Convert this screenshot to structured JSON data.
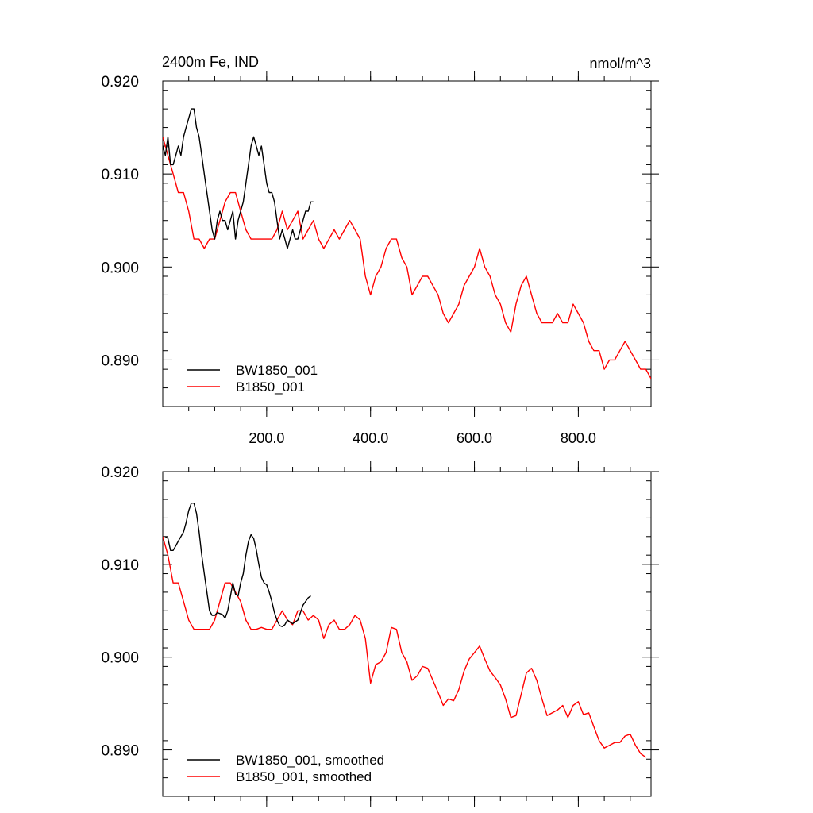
{
  "figure": {
    "title_left": "2400m Fe, IND",
    "title_right": "nmol/m^3"
  },
  "chart_data": [
    {
      "type": "line",
      "xlim": [
        0,
        940
      ],
      "ylim": [
        0.885,
        0.92
      ],
      "yticks": [
        0.92,
        0.91,
        0.9,
        0.89
      ],
      "ytick_labels": [
        "0.920",
        "0.910",
        "0.900",
        "0.890"
      ],
      "xticks": [
        200,
        400,
        600,
        800
      ],
      "xtick_labels": [
        "200.0",
        "400.0",
        "600.0",
        "800.0"
      ],
      "legend_placement": "bottom-left",
      "series": [
        {
          "name": "BW1850_001",
          "color": "#000000",
          "x": [
            0,
            5,
            10,
            15,
            20,
            25,
            30,
            35,
            40,
            45,
            50,
            55,
            60,
            65,
            70,
            75,
            80,
            85,
            90,
            95,
            100,
            105,
            110,
            115,
            120,
            125,
            130,
            135,
            140,
            145,
            150,
            155,
            160,
            165,
            170,
            175,
            180,
            185,
            190,
            195,
            200,
            205,
            210,
            215,
            220,
            225,
            230,
            235,
            240,
            245,
            250,
            255,
            260,
            265,
            270,
            275,
            280,
            285,
            290
          ],
          "y": [
            0.913,
            0.912,
            0.914,
            0.911,
            0.911,
            0.912,
            0.913,
            0.912,
            0.914,
            0.915,
            0.916,
            0.917,
            0.917,
            0.915,
            0.914,
            0.912,
            0.91,
            0.908,
            0.906,
            0.904,
            0.903,
            0.905,
            0.906,
            0.905,
            0.905,
            0.904,
            0.905,
            0.906,
            0.903,
            0.905,
            0.906,
            0.907,
            0.909,
            0.911,
            0.913,
            0.914,
            0.913,
            0.912,
            0.913,
            0.911,
            0.909,
            0.908,
            0.908,
            0.907,
            0.905,
            0.903,
            0.904,
            0.903,
            0.902,
            0.903,
            0.904,
            0.903,
            0.903,
            0.904,
            0.905,
            0.906,
            0.906,
            0.907,
            0.907
          ]
        },
        {
          "name": "B1850_001",
          "color": "#ff0000",
          "x": [
            0,
            10,
            20,
            30,
            40,
            50,
            60,
            70,
            80,
            90,
            100,
            110,
            120,
            130,
            140,
            150,
            160,
            170,
            180,
            190,
            200,
            210,
            220,
            230,
            240,
            250,
            260,
            270,
            280,
            290,
            300,
            310,
            320,
            330,
            340,
            350,
            360,
            370,
            380,
            390,
            400,
            410,
            420,
            430,
            440,
            450,
            460,
            470,
            480,
            490,
            500,
            510,
            520,
            530,
            540,
            550,
            560,
            570,
            580,
            590,
            600,
            610,
            620,
            630,
            640,
            650,
            660,
            670,
            680,
            690,
            700,
            710,
            720,
            730,
            740,
            750,
            760,
            770,
            780,
            790,
            800,
            810,
            820,
            830,
            840,
            850,
            860,
            870,
            880,
            890,
            900,
            910,
            920,
            930,
            940
          ],
          "y": [
            0.914,
            0.912,
            0.91,
            0.908,
            0.908,
            0.906,
            0.903,
            0.903,
            0.902,
            0.903,
            0.903,
            0.905,
            0.907,
            0.908,
            0.908,
            0.906,
            0.904,
            0.903,
            0.903,
            0.903,
            0.903,
            0.903,
            0.904,
            0.906,
            0.904,
            0.905,
            0.906,
            0.903,
            0.904,
            0.905,
            0.903,
            0.902,
            0.903,
            0.904,
            0.903,
            0.904,
            0.905,
            0.904,
            0.903,
            0.899,
            0.897,
            0.899,
            0.9,
            0.902,
            0.903,
            0.903,
            0.901,
            0.9,
            0.897,
            0.898,
            0.899,
            0.899,
            0.898,
            0.897,
            0.895,
            0.894,
            0.895,
            0.896,
            0.898,
            0.899,
            0.9,
            0.902,
            0.9,
            0.899,
            0.897,
            0.896,
            0.894,
            0.893,
            0.896,
            0.898,
            0.899,
            0.897,
            0.895,
            0.894,
            0.894,
            0.894,
            0.895,
            0.894,
            0.894,
            0.896,
            0.895,
            0.894,
            0.892,
            0.891,
            0.891,
            0.889,
            0.89,
            0.89,
            0.891,
            0.892,
            0.891,
            0.89,
            0.889,
            0.889,
            0.888
          ]
        }
      ]
    },
    {
      "type": "line",
      "xlim": [
        0,
        940
      ],
      "ylim": [
        0.885,
        0.92
      ],
      "yticks": [
        0.92,
        0.91,
        0.9,
        0.89
      ],
      "ytick_labels": [
        "0.920",
        "0.910",
        "0.900",
        "0.890"
      ],
      "xticks": [
        200,
        400,
        600,
        800
      ],
      "xtick_labels": [],
      "legend_placement": "bottom-left",
      "series": [
        {
          "name": "BW1850_001, smoothed",
          "color": "#000000",
          "x": [
            5,
            10,
            15,
            20,
            25,
            30,
            35,
            40,
            45,
            50,
            55,
            60,
            65,
            70,
            75,
            80,
            85,
            90,
            95,
            100,
            105,
            110,
            115,
            120,
            125,
            130,
            135,
            140,
            145,
            150,
            155,
            160,
            165,
            170,
            175,
            180,
            185,
            190,
            195,
            200,
            205,
            210,
            215,
            220,
            225,
            230,
            235,
            240,
            245,
            250,
            255,
            260,
            265,
            270,
            275,
            280,
            285
          ],
          "y": [
            0.913,
            0.9128,
            0.9115,
            0.9115,
            0.912,
            0.9125,
            0.913,
            0.9135,
            0.9145,
            0.9158,
            0.9166,
            0.9166,
            0.9155,
            0.9135,
            0.911,
            0.909,
            0.907,
            0.905,
            0.9045,
            0.9045,
            0.9048,
            0.9047,
            0.9046,
            0.9042,
            0.905,
            0.9065,
            0.908,
            0.9068,
            0.9066,
            0.908,
            0.909,
            0.911,
            0.9125,
            0.9132,
            0.9128,
            0.9116,
            0.91,
            0.9086,
            0.908,
            0.9078,
            0.907,
            0.906,
            0.9048,
            0.904,
            0.9034,
            0.9033,
            0.9035,
            0.904,
            0.9038,
            0.9036,
            0.9038,
            0.904,
            0.9048,
            0.9056,
            0.906,
            0.9064,
            0.9066
          ]
        },
        {
          "name": "B1850_001, smoothed",
          "color": "#ff0000",
          "x": [
            0,
            10,
            20,
            30,
            40,
            50,
            60,
            70,
            80,
            90,
            100,
            110,
            120,
            130,
            140,
            150,
            160,
            170,
            180,
            190,
            200,
            210,
            220,
            230,
            240,
            250,
            260,
            270,
            280,
            290,
            300,
            310,
            320,
            330,
            340,
            350,
            360,
            370,
            380,
            390,
            400,
            410,
            420,
            430,
            440,
            450,
            460,
            470,
            480,
            490,
            500,
            510,
            520,
            530,
            540,
            550,
            560,
            570,
            580,
            590,
            600,
            610,
            620,
            630,
            640,
            650,
            660,
            670,
            680,
            690,
            700,
            710,
            720,
            730,
            740,
            750,
            760,
            770,
            780,
            790,
            800,
            810,
            820,
            830,
            840,
            850,
            860,
            870,
            880,
            890,
            900,
            910,
            920,
            930
          ],
          "y": [
            0.913,
            0.911,
            0.908,
            0.908,
            0.906,
            0.904,
            0.903,
            0.903,
            0.903,
            0.903,
            0.904,
            0.906,
            0.908,
            0.908,
            0.907,
            0.906,
            0.904,
            0.903,
            0.903,
            0.9032,
            0.903,
            0.903,
            0.904,
            0.905,
            0.904,
            0.9035,
            0.905,
            0.905,
            0.904,
            0.9045,
            0.904,
            0.902,
            0.9035,
            0.904,
            0.903,
            0.903,
            0.9035,
            0.9045,
            0.904,
            0.902,
            0.8972,
            0.8992,
            0.8995,
            0.9005,
            0.9032,
            0.903,
            0.9005,
            0.8995,
            0.8975,
            0.898,
            0.899,
            0.8988,
            0.8975,
            0.8962,
            0.8948,
            0.8955,
            0.8953,
            0.8965,
            0.8985,
            0.8998,
            0.9005,
            0.9012,
            0.8998,
            0.8985,
            0.8978,
            0.897,
            0.8955,
            0.8935,
            0.8937,
            0.896,
            0.8983,
            0.8988,
            0.8975,
            0.8955,
            0.8937,
            0.894,
            0.8943,
            0.8948,
            0.8935,
            0.8948,
            0.8952,
            0.8938,
            0.894,
            0.8925,
            0.891,
            0.8902,
            0.8905,
            0.8908,
            0.8908,
            0.8915,
            0.8917,
            0.8905,
            0.8896,
            0.8892
          ]
        }
      ]
    }
  ]
}
